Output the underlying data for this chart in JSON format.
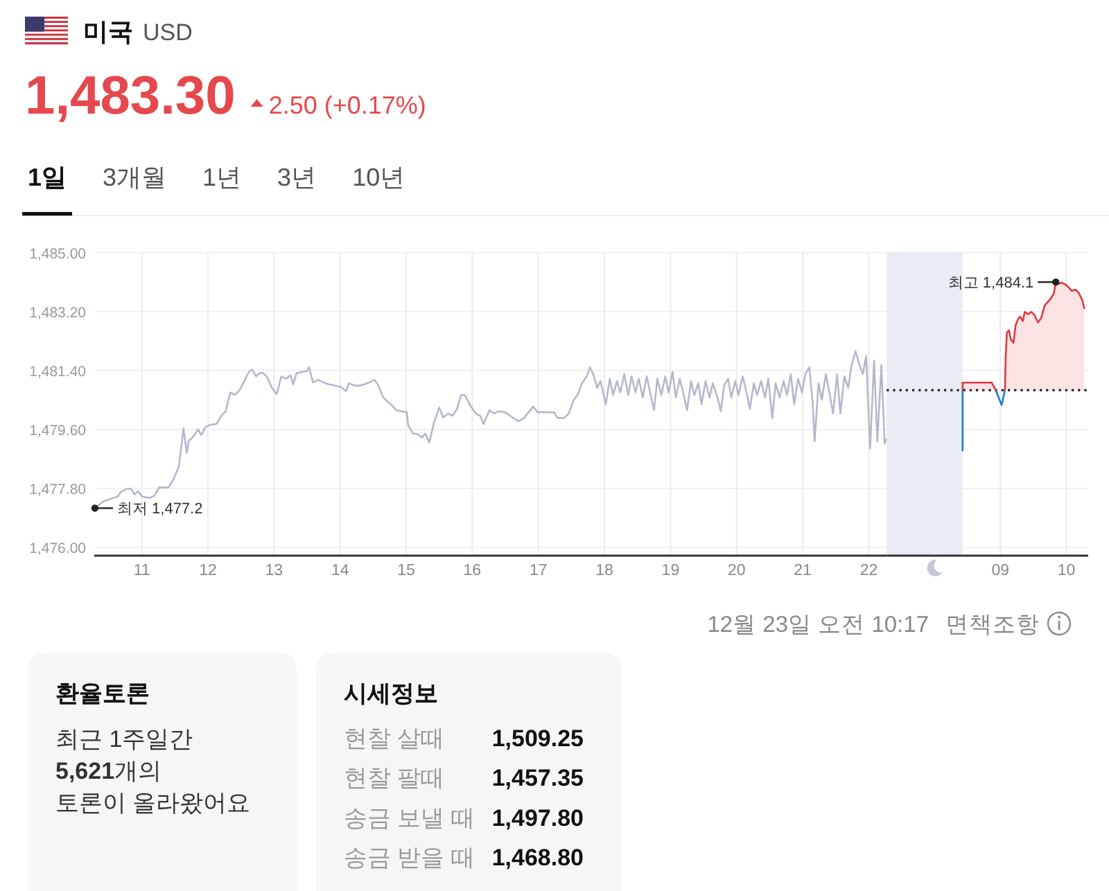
{
  "chart_data": [
    {
      "type": "line",
      "title": "미국",
      "subtitle": "USD",
      "annotations": [
        "1,483.30",
        "2.50 (+0.17%)",
        "1일",
        "3개월",
        "1년",
        "3년",
        "10년",
        {
          "text": "최저 1,477.2",
          "x": 10.29,
          "y": 1477.2
        },
        "12월 23일 오전 10:17",
        "면책조항"
      ],
      "xlim": [
        10.28,
        22.27
      ],
      "xticks": [
        11,
        12,
        13,
        14,
        15,
        16,
        17,
        18,
        19,
        20,
        21,
        22
      ],
      "ylim": [
        1475.75,
        1485
      ],
      "yticks": [
        {
          "value": 1476,
          "label": "1,476.00"
        },
        {
          "value": 1477.8,
          "label": "1,477.80"
        },
        {
          "value": 1479.6,
          "label": "1,479.60"
        },
        {
          "value": 1481.4,
          "label": "1,481.40"
        },
        {
          "value": 1483.2,
          "label": "1,483.20"
        },
        {
          "value": 1485,
          "label": "1,485.00"
        }
      ],
      "grid": true,
      "series": [
        {
          "color": "#b4b8cc",
          "x": [
            10.29,
            10.42,
            10.52,
            10.63,
            10.68,
            10.77,
            10.84,
            10.89,
            10.94,
            11.01,
            11.12,
            11.19,
            11.26,
            11.4,
            11.47,
            11.56,
            11.63,
            11.68,
            11.71,
            11.78,
            11.85,
            11.9,
            11.96,
            12.03,
            12.13,
            12.2,
            12.27,
            12.31,
            12.34,
            12.41,
            12.48,
            12.55,
            12.62,
            12.67,
            12.73,
            12.78,
            12.83,
            12.89,
            12.97,
            13.04,
            13.11,
            13.18,
            13.25,
            13.29,
            13.34,
            13.43,
            13.5,
            13.53,
            13.59,
            13.67,
            13.74,
            13.83,
            13.92,
            14.02,
            14.09,
            14.13,
            14.23,
            14.3,
            14.37,
            14.44,
            14.52,
            14.58,
            14.65,
            14.72,
            14.79,
            14.85,
            14.92,
            15.01,
            15.03,
            15.1,
            15.17,
            15.24,
            15.29,
            15.35,
            15.42,
            15.5,
            15.56,
            15.64,
            15.7,
            15.77,
            15.83,
            15.89,
            15.96,
            16.05,
            16.12,
            16.17,
            16.26,
            16.33,
            16.4,
            16.5,
            16.61,
            16.7,
            16.78,
            16.85,
            16.92,
            16.99,
            17.13,
            17.24,
            17.29,
            17.39,
            17.46,
            17.53,
            17.6,
            17.66,
            17.73,
            17.78,
            17.83,
            17.89,
            17.94,
            18.02,
            18.08,
            18.13,
            18.19,
            18.24,
            18.3,
            18.36,
            18.41,
            18.47,
            18.52,
            18.58,
            18.64,
            18.69,
            18.75,
            18.8,
            18.86,
            18.92,
            18.97,
            19.03,
            19.08,
            19.14,
            19.2,
            19.25,
            19.31,
            19.36,
            19.42,
            19.47,
            19.53,
            19.59,
            19.64,
            19.7,
            19.76,
            19.81,
            19.87,
            19.92,
            19.98,
            20.03,
            20.09,
            20.15,
            20.2,
            20.26,
            20.31,
            20.37,
            20.43,
            20.48,
            20.54,
            20.59,
            20.65,
            20.71,
            20.76,
            20.82,
            20.87,
            20.93,
            20.99,
            21.04,
            21.1,
            21.15,
            21.18,
            21.24,
            21.29,
            21.35,
            21.41,
            21.46,
            21.52,
            21.57,
            21.63,
            21.69,
            21.74,
            21.8,
            21.85,
            21.91,
            21.96,
            22.02,
            22.08,
            22.13,
            22.19,
            22.24,
            22.27
          ],
          "values": [
            1477.2,
            1477.41,
            1477.48,
            1477.55,
            1477.69,
            1477.79,
            1477.79,
            1477.62,
            1477.72,
            1477.55,
            1477.51,
            1477.58,
            1477.83,
            1477.83,
            1478.05,
            1478.47,
            1479.63,
            1478.89,
            1479.25,
            1479.39,
            1479.6,
            1479.43,
            1479.67,
            1479.74,
            1479.77,
            1480.02,
            1480.16,
            1480.51,
            1480.73,
            1480.66,
            1480.8,
            1481.08,
            1481.36,
            1481.43,
            1481.22,
            1481.32,
            1481.33,
            1481.22,
            1480.87,
            1480.68,
            1481.22,
            1481.15,
            1481.25,
            1480.98,
            1481.32,
            1481.36,
            1481.39,
            1481.5,
            1481.04,
            1481.12,
            1481.04,
            1480.98,
            1480.94,
            1480.89,
            1480.77,
            1481.01,
            1480.94,
            1480.94,
            1480.98,
            1481.04,
            1481.12,
            1480.94,
            1480.59,
            1480.45,
            1480.33,
            1480.19,
            1480.16,
            1480.13,
            1479.74,
            1479.48,
            1479.46,
            1479.36,
            1479.48,
            1479.2,
            1479.81,
            1480.27,
            1479.97,
            1480.09,
            1480.02,
            1480.23,
            1480.65,
            1480.65,
            1480.37,
            1480.09,
            1480.02,
            1479.77,
            1480.19,
            1480.09,
            1480.16,
            1480.12,
            1479.97,
            1479.85,
            1479.95,
            1480.12,
            1480.3,
            1480.13,
            1480.13,
            1480.12,
            1479.95,
            1479.95,
            1480.09,
            1480.48,
            1480.69,
            1481.01,
            1481.22,
            1481.5,
            1481.29,
            1480.87,
            1481.08,
            1480.37,
            1481.15,
            1480.65,
            1481.08,
            1480.73,
            1481.29,
            1480.65,
            1481.22,
            1480.73,
            1481.15,
            1480.58,
            1481.22,
            1480.73,
            1480.19,
            1481.15,
            1480.65,
            1481.22,
            1480.73,
            1481.36,
            1480.58,
            1481.15,
            1480.65,
            1480.19,
            1481.08,
            1480.65,
            1481.01,
            1480.37,
            1481.08,
            1480.58,
            1481.01,
            1480.65,
            1480.16,
            1480.94,
            1481.15,
            1480.58,
            1481.08,
            1480.65,
            1481.22,
            1480.73,
            1480.23,
            1481.01,
            1480.65,
            1481.08,
            1480.58,
            1481.15,
            1479.95,
            1481.01,
            1480.58,
            1481.08,
            1480.65,
            1481.29,
            1480.37,
            1481.15,
            1480.73,
            1481.29,
            1481.5,
            1480.44,
            1479.24,
            1481.01,
            1480.51,
            1481.29,
            1480.65,
            1480.09,
            1481.29,
            1480.09,
            1481.22,
            1480.87,
            1481.57,
            1481.99,
            1481.64,
            1481.29,
            1481.85,
            1479.03,
            1481.71,
            1479.24,
            1481.57,
            1479.17,
            1479.31
          ]
        }
      ]
    },
    {
      "type": "line",
      "annotations": [
        {
          "text": "최고 1,484.1",
          "x": 9.84,
          "y": 1484.1
        }
      ],
      "xlim": [
        7.28,
        10.33
      ],
      "xticks": [
        {
          "value": 9,
          "label": "09"
        },
        10
      ],
      "ylim": [
        1475.75,
        1485
      ],
      "yticks": [
        {
          "value": 1476,
          "label": null
        },
        {
          "value": 1477.8,
          "label": null
        },
        {
          "value": 1479.6,
          "label": null
        },
        {
          "value": 1481.4,
          "label": null
        },
        {
          "value": 1483.2,
          "label": null
        },
        {
          "value": 1485,
          "label": null
        }
      ],
      "tick_labels": "x",
      "grid": true,
      "ref_lines": [
        {
          "axis": "y",
          "value": 1480.8,
          "color": "#222222",
          "line_style": "dotted"
        }
      ],
      "bands": [
        {
          "axis": "x",
          "from": 7.28,
          "to": 8.43,
          "color": "#e9ecf2"
        }
      ],
      "series": [
        {
          "color": "#1b7bd3",
          "x": [
            8.43,
            8.43,
            8.66,
            8.93,
            9.02,
            9.07
          ],
          "values": [
            1478.96,
            1480.8,
            null,
            1480.8,
            1480.35,
            1480.8
          ]
        },
        {
          "type": "area",
          "color": "#e0383e",
          "x": [
            8.43,
            8.43,
            8.87,
            8.93,
            9.0,
            9.07,
            9.08,
            9.1,
            9.13,
            9.16,
            9.2,
            9.23,
            9.27,
            9.3,
            9.34,
            9.37,
            9.42,
            9.47,
            9.52,
            9.57,
            9.62,
            9.67,
            9.73,
            9.77,
            9.81,
            9.84,
            9.88,
            9.93,
            9.99,
            10.04,
            10.08,
            10.14,
            10.19,
            10.24,
            10.27
          ],
          "values": [
            1480.8,
            1481.03,
            1481.03,
            1480.8,
            null,
            1480.8,
            1481.78,
            1482.56,
            1482.63,
            1482.35,
            1482.25,
            1482.77,
            1482.98,
            1483.05,
            1482.91,
            1483.19,
            1483.12,
            1483.19,
            1483.09,
            1482.87,
            1483.01,
            1483.38,
            1483.52,
            1483.62,
            1483.76,
            1484.1,
            1484.05,
            1484.08,
            1484.02,
            1483.93,
            1483.83,
            1483.87,
            1483.76,
            1483.55,
            1483.3
          ]
        }
      ]
    },
    {
      "type": "other",
      "title": "환율토론",
      "annotations": [
        "최근 1주일간",
        "**5,621**개의",
        "토론이 올라왔어요"
      ]
    },
    {
      "type": "other",
      "title": "시세정보",
      "categories": [
        "현찰 살때",
        "현찰 팔때",
        "송금 보낼 때",
        "송금 받을 때"
      ],
      "annotations": [
        "1,509.25",
        "1,457.35",
        "1,497.80",
        "1,468.80"
      ]
    }
  ]
}
